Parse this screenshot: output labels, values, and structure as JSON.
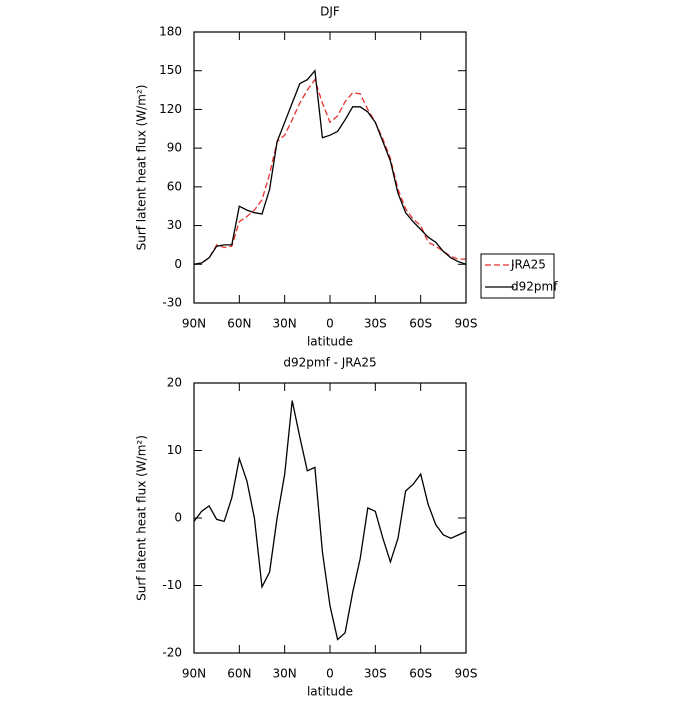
{
  "chart_data": [
    {
      "type": "line",
      "title": "DJF",
      "xlabel": "latitude",
      "ylabel": "Surf latent heat flux (W/m²)",
      "x": [
        90,
        85,
        80,
        75,
        70,
        65,
        60,
        55,
        50,
        45,
        40,
        35,
        30,
        25,
        20,
        15,
        10,
        5,
        0,
        -5,
        -10,
        -15,
        -20,
        -25,
        -30,
        -35,
        -40,
        -45,
        -50,
        -55,
        -60,
        -65,
        -70,
        -75,
        -80,
        -85,
        -90
      ],
      "series": [
        {
          "name": "JRA25",
          "color": "#e8312f",
          "dashed": true,
          "values": [
            0,
            1,
            5,
            15,
            13,
            14,
            33,
            37,
            42,
            50,
            70,
            95,
            100,
            112,
            125,
            135,
            143,
            125,
            110,
            115,
            126,
            133,
            132,
            120,
            110,
            97,
            82,
            58,
            43,
            35,
            30,
            17,
            14,
            10,
            6,
            4,
            4
          ]
        },
        {
          "name": "d92pmf",
          "color": "#000000",
          "dashed": false,
          "values": [
            0,
            1,
            5,
            14,
            15,
            15,
            45,
            42,
            40,
            39,
            58,
            95,
            110,
            125,
            140,
            143,
            150,
            98,
            100,
            103,
            112,
            122,
            122,
            118,
            110,
            95,
            80,
            55,
            40,
            33,
            27,
            21,
            17,
            10,
            5,
            2,
            0
          ]
        }
      ],
      "xlim": [
        90,
        -90
      ],
      "xticks": [
        {
          "value": 90,
          "label": "90N"
        },
        {
          "value": 60,
          "label": "60N"
        },
        {
          "value": 30,
          "label": "30N"
        },
        0,
        {
          "value": -30,
          "label": "30S"
        },
        {
          "value": -60,
          "label": "60S"
        },
        {
          "value": -90,
          "label": "90S"
        }
      ],
      "ylim": [
        -30,
        180
      ],
      "yticks": [
        -30,
        0,
        30,
        60,
        90,
        120,
        150,
        180
      ],
      "legend": "right"
    },
    {
      "type": "line",
      "title": "d92pmf - JRA25",
      "xlabel": "latitude",
      "ylabel": "Surf latent heat flux (W/m²)",
      "x": [
        90,
        85,
        80,
        75,
        70,
        65,
        60,
        55,
        50,
        45,
        40,
        35,
        30,
        25,
        20,
        15,
        10,
        5,
        0,
        -5,
        -10,
        -15,
        -20,
        -25,
        -30,
        -35,
        -40,
        -45,
        -50,
        -55,
        -60,
        -65,
        -70,
        -75,
        -80,
        -85,
        -90
      ],
      "series": [
        {
          "color": "#000000",
          "dashed": false,
          "values": [
            -0.5,
            1,
            1.8,
            -0.2,
            -0.5,
            3,
            8.8,
            5.5,
            0,
            -10.2,
            -8,
            0,
            6.5,
            17.4,
            12,
            7,
            7.5,
            -5,
            -13,
            -18,
            -17,
            -11,
            -6,
            1.5,
            1,
            -3,
            -6.5,
            -3,
            4,
            5,
            6.5,
            2,
            -1,
            -2.5,
            -3,
            -2.5,
            -2
          ]
        }
      ],
      "xlim": [
        90,
        -90
      ],
      "xticks": [
        {
          "value": 90,
          "label": "90N"
        },
        {
          "value": 60,
          "label": "60N"
        },
        {
          "value": 30,
          "label": "30N"
        },
        0,
        {
          "value": -30,
          "label": "30S"
        },
        {
          "value": -60,
          "label": "60S"
        },
        {
          "value": -90,
          "label": "90S"
        }
      ],
      "ylim": [
        -20,
        20
      ],
      "yticks": [
        -20,
        -10,
        0,
        10,
        20
      ]
    }
  ]
}
